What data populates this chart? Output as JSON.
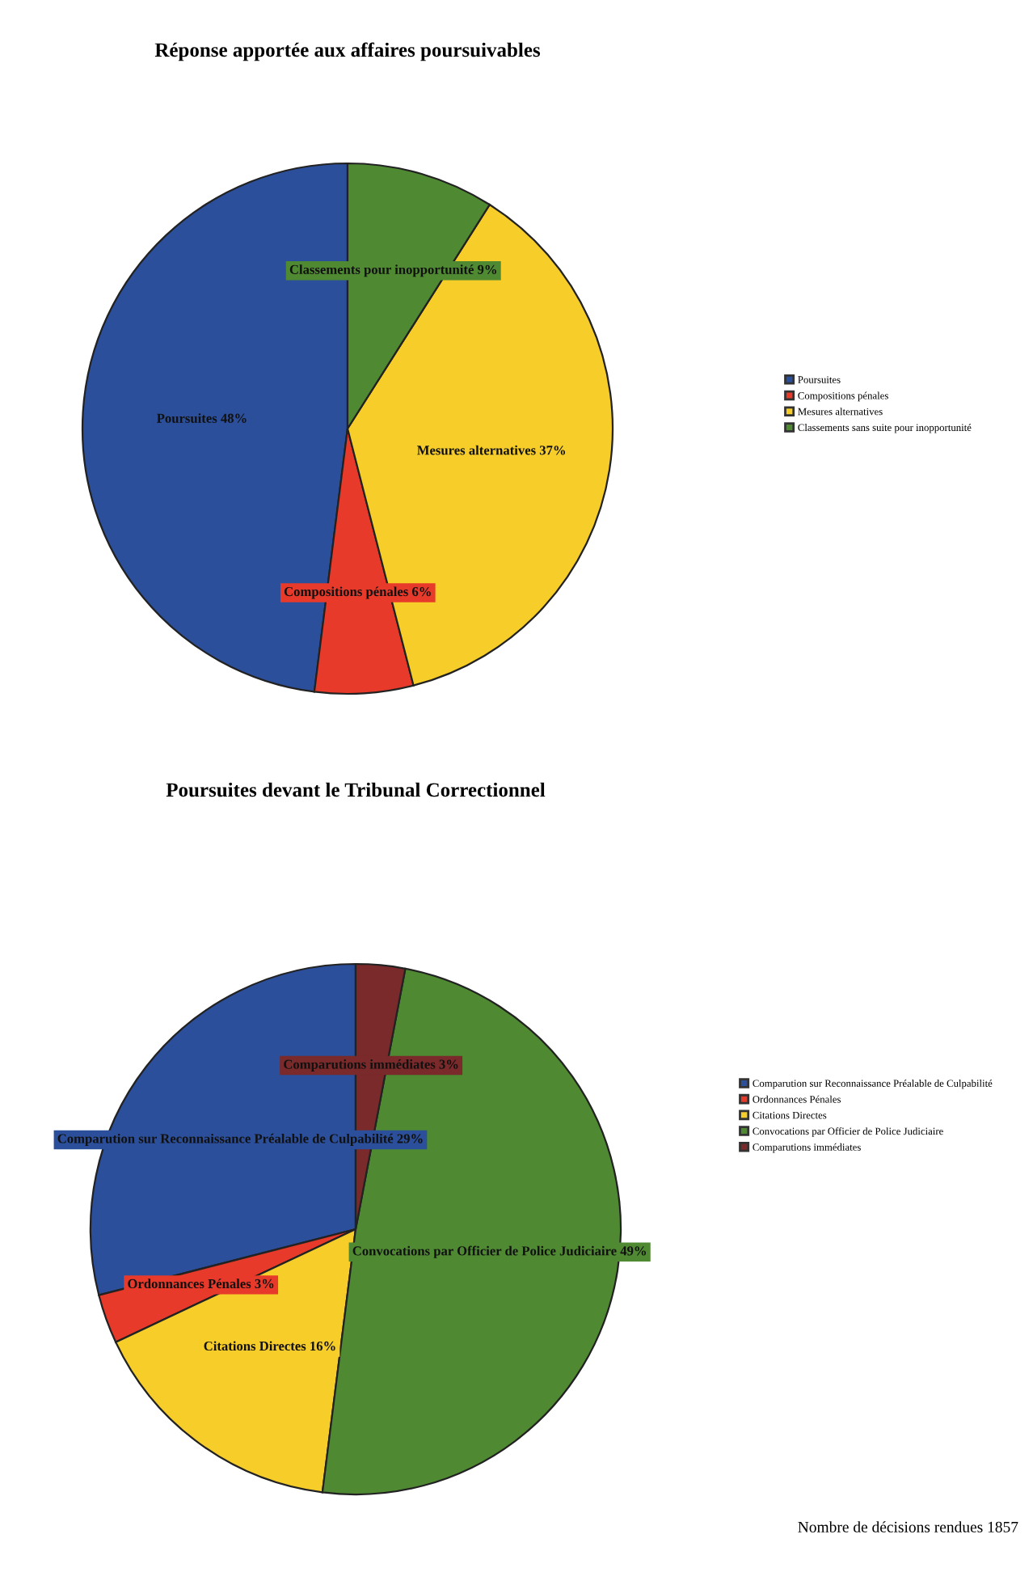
{
  "chart_data": [
    {
      "type": "pie",
      "title": "Réponse apportée aux affaires poursuivables",
      "categories": [
        "Poursuites",
        "Compositions pénales",
        "Mesures alternatives",
        "Classements sans suite pour inopportunité"
      ],
      "values": [
        48,
        6,
        37,
        9
      ],
      "colors": [
        "#2b4f9a",
        "#e83a2a",
        "#f7cd2a",
        "#4f8a32"
      ],
      "value_labels": [
        "Poursuites 48%",
        "Compositions pénales 6%",
        "Mesures alternatives 37%",
        "Classements pour inopportunité 9%"
      ],
      "legend": "right"
    },
    {
      "type": "pie",
      "title": "Poursuites devant le Tribunal Correctionnel",
      "categories": [
        "Comparution sur Reconnaissance Préalable de Culpabilité",
        "Ordonnances Pénales",
        "Citations Directes",
        "Convocations par Officier de Police Judiciaire",
        "Comparutions immédiates"
      ],
      "values": [
        29,
        3,
        16,
        49,
        3
      ],
      "colors": [
        "#2b4f9a",
        "#e83a2a",
        "#f7cd2a",
        "#4f8a32",
        "#7a2a2a"
      ],
      "value_labels": [
        "Comparution sur Reconnaissance Préalable de Culpabilité 29%",
        "Ordonnances Pénales 3%",
        "Citations Directes 16%",
        "Convocations par Officier de Police Judiciaire 49%",
        "Comparutions immédiates 3%"
      ],
      "legend": "right",
      "annotations": [
        "Nombre de décisions rendues 1857"
      ]
    }
  ]
}
